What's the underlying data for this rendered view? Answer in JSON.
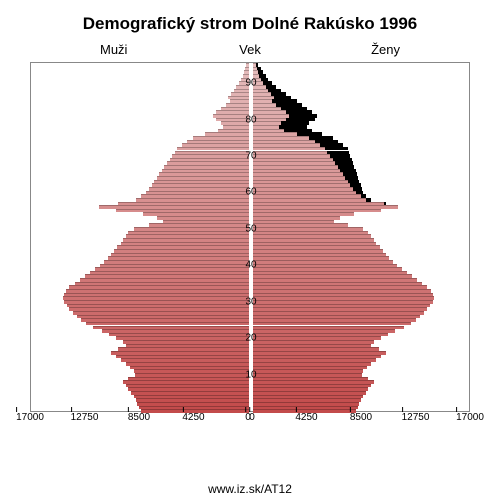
{
  "title": "Demografický strom Dolné Rakúsko 1996",
  "labels": {
    "left": "Muži",
    "center": "Vek",
    "right": "Ženy"
  },
  "footer": "www.iz.sk/AT12",
  "chart": {
    "type": "population-pyramid",
    "background_color": "#ffffff",
    "border_color": "#888888",
    "shadow_color": "#000000",
    "bar_stroke": "rgba(0,0,0,0.25)",
    "gradient": {
      "top": "#e4bcbc",
      "bottom": "#c34b4b"
    },
    "x_axis": {
      "max": 17000,
      "ticks": [
        17000,
        12750,
        8500,
        4250,
        0
      ],
      "tick_labels_left": [
        "17000",
        "12750",
        "8500",
        "4250",
        "0"
      ],
      "tick_labels_right": [
        "0",
        "4250",
        "8500",
        "12750",
        "17000"
      ],
      "fontsize": 10
    },
    "y_axis": {
      "max_age": 95,
      "ticks": [
        10,
        20,
        30,
        40,
        50,
        60,
        70,
        80,
        90
      ],
      "fontsize": 10
    },
    "ages": [
      0,
      1,
      2,
      3,
      4,
      5,
      6,
      7,
      8,
      9,
      10,
      11,
      12,
      13,
      14,
      15,
      16,
      17,
      18,
      19,
      20,
      21,
      22,
      23,
      24,
      25,
      26,
      27,
      28,
      29,
      30,
      31,
      32,
      33,
      34,
      35,
      36,
      37,
      38,
      39,
      40,
      41,
      42,
      43,
      44,
      45,
      46,
      47,
      48,
      49,
      50,
      51,
      52,
      53,
      54,
      55,
      56,
      57,
      58,
      59,
      60,
      61,
      62,
      63,
      64,
      65,
      66,
      67,
      68,
      69,
      70,
      71,
      72,
      73,
      74,
      75,
      76,
      77,
      78,
      79,
      80,
      81,
      82,
      83,
      84,
      85,
      86,
      87,
      88,
      89,
      90,
      91,
      92,
      93,
      94,
      95
    ],
    "male": [
      8400,
      8600,
      8700,
      8800,
      9000,
      9200,
      9400,
      9600,
      9800,
      9400,
      8900,
      9000,
      9300,
      9600,
      10000,
      10400,
      10800,
      10200,
      9600,
      9800,
      10400,
      10900,
      11500,
      12200,
      12700,
      13100,
      13400,
      13700,
      14000,
      14200,
      14400,
      14500,
      14400,
      14300,
      14000,
      13600,
      13200,
      12800,
      12400,
      12000,
      11600,
      11300,
      11000,
      10800,
      10500,
      10300,
      10000,
      9800,
      9600,
      9400,
      9000,
      7800,
      6700,
      7200,
      8300,
      10400,
      11700,
      10200,
      8800,
      8400,
      8000,
      7800,
      7600,
      7400,
      7200,
      7000,
      6800,
      6600,
      6400,
      6200,
      6000,
      5800,
      5600,
      5200,
      4800,
      4400,
      3400,
      2400,
      2000,
      2200,
      2600,
      2800,
      2600,
      2200,
      1800,
      1500,
      1600,
      1400,
      1200,
      1000,
      800,
      600,
      500,
      400,
      300,
      200
    ],
    "female": [
      8000,
      8200,
      8300,
      8400,
      8600,
      8800,
      9000,
      9200,
      9400,
      9000,
      8500,
      8600,
      8900,
      9200,
      9600,
      10000,
      10400,
      9800,
      9200,
      9400,
      10000,
      10500,
      11100,
      11800,
      12300,
      12700,
      13000,
      13300,
      13600,
      13800,
      14000,
      14100,
      14000,
      13900,
      13600,
      13200,
      12800,
      12400,
      12000,
      11600,
      11200,
      10900,
      10600,
      10400,
      10100,
      9900,
      9600,
      9400,
      9200,
      9000,
      8600,
      7400,
      6300,
      6800,
      7900,
      10000,
      11300,
      10400,
      9200,
      8800,
      8600,
      8500,
      8400,
      8300,
      8200,
      8100,
      8000,
      7900,
      7800,
      7700,
      7600,
      7500,
      7400,
      7000,
      6600,
      6200,
      5400,
      4600,
      4200,
      4400,
      4800,
      5000,
      4600,
      4200,
      3800,
      3400,
      3000,
      2600,
      2200,
      1800,
      1500,
      1200,
      1000,
      800,
      600,
      400
    ]
  }
}
